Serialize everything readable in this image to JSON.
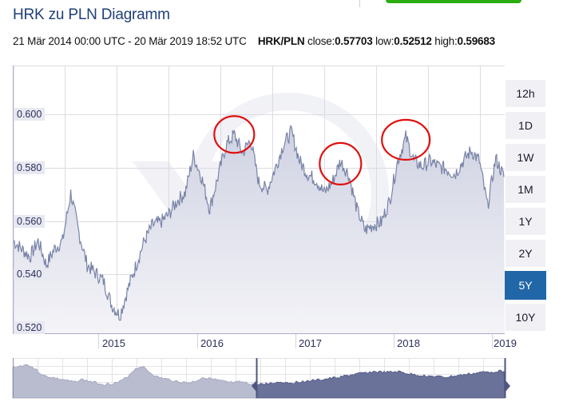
{
  "header": {
    "title": "HRK zu PLN Diagramm",
    "date_range": "21 Mär 2014 00:00 UTC - 20 Mär 2019 18:52 UTC",
    "pair": "HRK/PLN",
    "close_label": "close:",
    "close_value": "0.57703",
    "low_label": "low:",
    "low_value": "0.52512",
    "high_label": "high:",
    "high_value": "0.59683"
  },
  "range_buttons": [
    {
      "label": "12h",
      "active": false
    },
    {
      "label": "1D",
      "active": false
    },
    {
      "label": "1W",
      "active": false
    },
    {
      "label": "1M",
      "active": false
    },
    {
      "label": "1Y",
      "active": false
    },
    {
      "label": "2Y",
      "active": false
    },
    {
      "label": "5Y",
      "active": true
    },
    {
      "label": "10Y",
      "active": false
    }
  ],
  "colors": {
    "line": "#7a84a8",
    "area_top": "#cfd2e2",
    "area_bottom": "#f3f3f8",
    "grid": "#dcdce2",
    "annotation": "#e01010",
    "active_button": "#2167a8",
    "navigator_selected": "#6b7299",
    "navigator_unselected": "#b8bcce",
    "brand_green": "#2aad0e"
  },
  "chart_data": {
    "type": "area",
    "title": "HRK zu PLN Diagramm",
    "series": [
      {
        "name": "HRK/PLN"
      }
    ],
    "xlabel": "",
    "ylabel": "",
    "x_tick_labels": [
      "2015",
      "2016",
      "2017",
      "2018",
      "2019"
    ],
    "y_tick_labels": [
      "0.600",
      "0.580",
      "0.560",
      "0.540",
      "0.520"
    ],
    "ylim": [
      0.518,
      0.62
    ],
    "grid": true,
    "legend": "none",
    "summary": {
      "close": 0.57703,
      "low": 0.52512,
      "high": 0.59683
    },
    "points": [
      [
        "2014-03",
        0.553
      ],
      [
        "2014-04",
        0.55
      ],
      [
        "2014-05",
        0.547
      ],
      [
        "2014-06",
        0.553
      ],
      [
        "2014-07",
        0.544
      ],
      [
        "2014-08",
        0.55
      ],
      [
        "2014-09",
        0.553
      ],
      [
        "2014-10",
        0.571
      ],
      [
        "2014-11",
        0.556
      ],
      [
        "2014-12",
        0.544
      ],
      [
        "2015-01",
        0.541
      ],
      [
        "2015-02",
        0.538
      ],
      [
        "2015-03",
        0.529
      ],
      [
        "2015-04",
        0.525
      ],
      [
        "2015-05",
        0.535
      ],
      [
        "2015-06",
        0.544
      ],
      [
        "2015-07",
        0.553
      ],
      [
        "2015-08",
        0.559
      ],
      [
        "2015-09",
        0.56
      ],
      [
        "2015-10",
        0.563
      ],
      [
        "2015-11",
        0.568
      ],
      [
        "2015-12",
        0.571
      ],
      [
        "2016-01",
        0.585
      ],
      [
        "2016-02",
        0.577
      ],
      [
        "2016-03",
        0.565
      ],
      [
        "2016-04",
        0.577
      ],
      [
        "2016-05",
        0.589
      ],
      [
        "2016-06",
        0.593
      ],
      [
        "2016-07",
        0.586
      ],
      [
        "2016-08",
        0.591
      ],
      [
        "2016-09",
        0.575
      ],
      [
        "2016-10",
        0.572
      ],
      [
        "2016-11",
        0.58
      ],
      [
        "2016-12",
        0.589
      ],
      [
        "2017-01",
        0.594
      ],
      [
        "2017-02",
        0.583
      ],
      [
        "2017-03",
        0.578
      ],
      [
        "2017-04",
        0.576
      ],
      [
        "2017-05",
        0.571
      ],
      [
        "2017-06",
        0.575
      ],
      [
        "2017-07",
        0.583
      ],
      [
        "2017-08",
        0.578
      ],
      [
        "2017-09",
        0.565
      ],
      [
        "2017-10",
        0.557
      ],
      [
        "2017-11",
        0.559
      ],
      [
        "2017-12",
        0.56
      ],
      [
        "2018-01",
        0.568
      ],
      [
        "2018-02",
        0.583
      ],
      [
        "2018-03",
        0.592
      ],
      [
        "2018-04",
        0.583
      ],
      [
        "2018-05",
        0.581
      ],
      [
        "2018-06",
        0.583
      ],
      [
        "2018-07",
        0.581
      ],
      [
        "2018-08",
        0.58
      ],
      [
        "2018-09",
        0.578
      ],
      [
        "2018-10",
        0.583
      ],
      [
        "2018-11",
        0.587
      ],
      [
        "2018-12",
        0.583
      ],
      [
        "2019-01",
        0.566
      ],
      [
        "2019-02",
        0.584
      ],
      [
        "2019-03",
        0.577
      ]
    ],
    "annotations": [
      {
        "type": "circle",
        "near": "2016-06",
        "value_approx": 0.593,
        "color": "red"
      },
      {
        "type": "circle",
        "near": "2017-07",
        "value_approx": 0.582,
        "color": "red"
      },
      {
        "type": "circle",
        "near": "2018-03",
        "value_approx": 0.591,
        "color": "red"
      }
    ],
    "navigator": {
      "labels": [],
      "selected_range": "5Y"
    }
  }
}
